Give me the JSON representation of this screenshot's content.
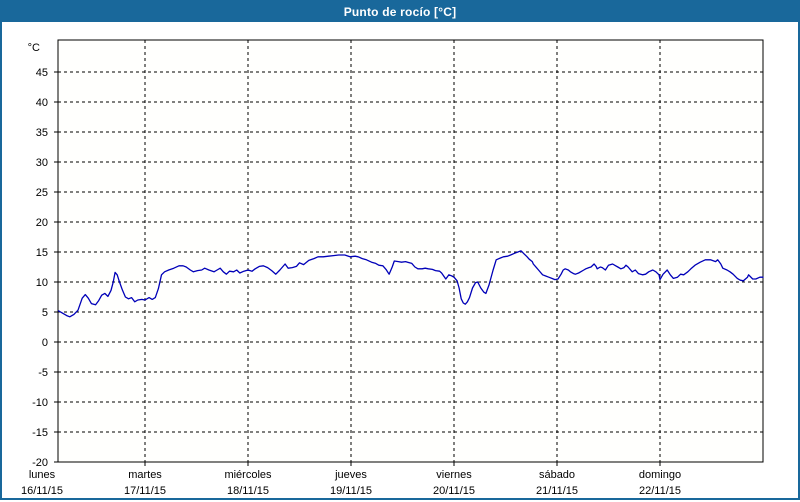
{
  "window": {
    "title": "Punto de rocío [°C]",
    "title_bar_color": "#19689b",
    "border_color": "#19689b",
    "background_color": "#ffffff"
  },
  "chart_data": {
    "type": "line",
    "title": "Punto de rocío [°C]",
    "ylabel": "°C",
    "xlabel": "",
    "grid": "dashed",
    "legend_position": "none",
    "colors": {
      "line": "#0000b8",
      "grid": "#000000",
      "axis": "#000000",
      "plot_bg": "#fffffd",
      "text": "#000000"
    },
    "y_axis": {
      "min": -20,
      "max": 50,
      "tick_step": 5,
      "tick_labels": [
        "45",
        "40",
        "35",
        "30",
        "25",
        "20",
        "15",
        "10",
        "5",
        "0",
        "-5",
        "-10",
        "-15",
        "-20"
      ],
      "tick_values": [
        45,
        40,
        35,
        30,
        25,
        20,
        15,
        10,
        5,
        0,
        -5,
        -10,
        -15,
        -20
      ],
      "unit_label": "°C"
    },
    "x_axis": {
      "days": [
        {
          "name": "lunes",
          "date": "16/11/15"
        },
        {
          "name": "martes",
          "date": "17/11/15"
        },
        {
          "name": "miércoles",
          "date": "18/11/15"
        },
        {
          "name": "jueves",
          "date": "19/11/15"
        },
        {
          "name": "viernes",
          "date": "20/11/15"
        },
        {
          "name": "sábado",
          "date": "21/11/15"
        },
        {
          "name": "domingo",
          "date": "22/11/15"
        }
      ],
      "range_days": [
        0.16,
        7.0
      ],
      "day_gridlines_at": [
        1,
        2,
        3,
        4,
        5,
        6
      ]
    },
    "series": [
      {
        "name": "Punto de rocío",
        "units": "°C",
        "x_units": "days since 16/11/15 00:00",
        "points": [
          [
            0.16,
            5.2
          ],
          [
            0.2,
            4.8
          ],
          [
            0.24,
            4.4
          ],
          [
            0.27,
            4.2
          ],
          [
            0.31,
            4.6
          ],
          [
            0.35,
            5.3
          ],
          [
            0.39,
            7.3
          ],
          [
            0.42,
            7.9
          ],
          [
            0.45,
            7.3
          ],
          [
            0.48,
            6.4
          ],
          [
            0.52,
            6.2
          ],
          [
            0.55,
            6.9
          ],
          [
            0.58,
            7.8
          ],
          [
            0.61,
            8.1
          ],
          [
            0.64,
            7.6
          ],
          [
            0.67,
            8.6
          ],
          [
            0.69,
            9.9
          ],
          [
            0.71,
            11.6
          ],
          [
            0.73,
            11.2
          ],
          [
            0.75,
            10.1
          ],
          [
            0.78,
            8.7
          ],
          [
            0.81,
            7.5
          ],
          [
            0.84,
            7.2
          ],
          [
            0.87,
            7.4
          ],
          [
            0.9,
            6.7
          ],
          [
            0.93,
            7.0
          ],
          [
            0.97,
            7.1
          ],
          [
            1.0,
            7.0
          ],
          [
            1.04,
            7.4
          ],
          [
            1.07,
            7.1
          ],
          [
            1.1,
            7.4
          ],
          [
            1.13,
            8.9
          ],
          [
            1.16,
            11.2
          ],
          [
            1.19,
            11.7
          ],
          [
            1.23,
            12.0
          ],
          [
            1.28,
            12.3
          ],
          [
            1.33,
            12.7
          ],
          [
            1.37,
            12.7
          ],
          [
            1.4,
            12.5
          ],
          [
            1.44,
            12.0
          ],
          [
            1.47,
            11.7
          ],
          [
            1.51,
            11.9
          ],
          [
            1.55,
            12.0
          ],
          [
            1.58,
            12.3
          ],
          [
            1.62,
            12.0
          ],
          [
            1.67,
            11.7
          ],
          [
            1.7,
            12.0
          ],
          [
            1.73,
            12.3
          ],
          [
            1.76,
            11.7
          ],
          [
            1.79,
            11.3
          ],
          [
            1.82,
            11.8
          ],
          [
            1.86,
            11.7
          ],
          [
            1.89,
            12.0
          ],
          [
            1.92,
            11.5
          ],
          [
            1.96,
            11.8
          ],
          [
            2.0,
            12.0
          ],
          [
            2.04,
            11.8
          ],
          [
            2.07,
            12.2
          ],
          [
            2.11,
            12.6
          ],
          [
            2.15,
            12.7
          ],
          [
            2.19,
            12.4
          ],
          [
            2.23,
            11.9
          ],
          [
            2.27,
            11.3
          ],
          [
            2.31,
            12.0
          ],
          [
            2.36,
            13.0
          ],
          [
            2.39,
            12.3
          ],
          [
            2.43,
            12.4
          ],
          [
            2.47,
            12.6
          ],
          [
            2.5,
            13.2
          ],
          [
            2.54,
            12.9
          ],
          [
            2.59,
            13.6
          ],
          [
            2.64,
            13.9
          ],
          [
            2.68,
            14.2
          ],
          [
            2.73,
            14.2
          ],
          [
            2.78,
            14.3
          ],
          [
            2.83,
            14.4
          ],
          [
            2.88,
            14.5
          ],
          [
            2.94,
            14.5
          ],
          [
            2.99,
            14.2
          ],
          [
            3.04,
            14.3
          ],
          [
            3.07,
            14.2
          ],
          [
            3.11,
            13.9
          ],
          [
            3.15,
            13.7
          ],
          [
            3.2,
            13.3
          ],
          [
            3.24,
            13.1
          ],
          [
            3.27,
            12.8
          ],
          [
            3.31,
            12.7
          ],
          [
            3.34,
            12.1
          ],
          [
            3.37,
            11.3
          ],
          [
            3.4,
            12.5
          ],
          [
            3.42,
            13.5
          ],
          [
            3.46,
            13.4
          ],
          [
            3.49,
            13.3
          ],
          [
            3.53,
            13.4
          ],
          [
            3.55,
            13.3
          ],
          [
            3.59,
            13.1
          ],
          [
            3.62,
            12.5
          ],
          [
            3.65,
            12.2
          ],
          [
            3.69,
            12.2
          ],
          [
            3.72,
            12.3
          ],
          [
            3.75,
            12.2
          ],
          [
            3.79,
            12.1
          ],
          [
            3.82,
            11.9
          ],
          [
            3.86,
            11.8
          ],
          [
            3.88,
            11.5
          ],
          [
            3.92,
            10.5
          ],
          [
            3.95,
            11.2
          ],
          [
            3.98,
            11.0
          ],
          [
            4.0,
            10.8
          ],
          [
            4.03,
            10.2
          ],
          [
            4.05,
            9.0
          ],
          [
            4.07,
            7.2
          ],
          [
            4.09,
            6.5
          ],
          [
            4.11,
            6.3
          ],
          [
            4.13,
            6.7
          ],
          [
            4.15,
            7.4
          ],
          [
            4.18,
            9.0
          ],
          [
            4.21,
            9.9
          ],
          [
            4.23,
            10.0
          ],
          [
            4.26,
            9.0
          ],
          [
            4.29,
            8.3
          ],
          [
            4.31,
            8.1
          ],
          [
            4.34,
            9.5
          ],
          [
            4.38,
            12.0
          ],
          [
            4.41,
            13.7
          ],
          [
            4.45,
            14.0
          ],
          [
            4.48,
            14.2
          ],
          [
            4.52,
            14.3
          ],
          [
            4.55,
            14.5
          ],
          [
            4.59,
            14.8
          ],
          [
            4.62,
            15.0
          ],
          [
            4.65,
            15.2
          ],
          [
            4.68,
            14.7
          ],
          [
            4.71,
            14.2
          ],
          [
            4.73,
            13.8
          ],
          [
            4.76,
            13.4
          ],
          [
            4.77,
            13.0
          ],
          [
            4.8,
            12.4
          ],
          [
            4.82,
            12.0
          ],
          [
            4.86,
            11.2
          ],
          [
            4.89,
            11.0
          ],
          [
            4.92,
            10.8
          ],
          [
            4.95,
            10.6
          ],
          [
            4.98,
            10.4
          ],
          [
            5.01,
            10.5
          ],
          [
            5.04,
            11.3
          ],
          [
            5.06,
            12.0
          ],
          [
            5.08,
            12.2
          ],
          [
            5.11,
            12.0
          ],
          [
            5.13,
            11.7
          ],
          [
            5.16,
            11.4
          ],
          [
            5.18,
            11.3
          ],
          [
            5.21,
            11.5
          ],
          [
            5.23,
            11.7
          ],
          [
            5.26,
            12.0
          ],
          [
            5.28,
            12.2
          ],
          [
            5.31,
            12.4
          ],
          [
            5.33,
            12.5
          ],
          [
            5.36,
            13.0
          ],
          [
            5.38,
            12.6
          ],
          [
            5.39,
            12.2
          ],
          [
            5.42,
            12.5
          ],
          [
            5.44,
            12.4
          ],
          [
            5.47,
            12.0
          ],
          [
            5.5,
            12.8
          ],
          [
            5.54,
            13.0
          ],
          [
            5.57,
            12.7
          ],
          [
            5.59,
            12.5
          ],
          [
            5.62,
            12.2
          ],
          [
            5.65,
            12.4
          ],
          [
            5.67,
            12.8
          ],
          [
            5.69,
            12.5
          ],
          [
            5.73,
            11.7
          ],
          [
            5.76,
            12.0
          ],
          [
            5.79,
            11.4
          ],
          [
            5.83,
            11.2
          ],
          [
            5.86,
            11.3
          ],
          [
            5.89,
            11.7
          ],
          [
            5.93,
            12.0
          ],
          [
            5.96,
            11.7
          ],
          [
            5.99,
            11.2
          ],
          [
            6.0,
            10.4
          ],
          [
            6.03,
            11.3
          ],
          [
            6.07,
            12.0
          ],
          [
            6.1,
            11.2
          ],
          [
            6.13,
            10.6
          ],
          [
            6.17,
            10.8
          ],
          [
            6.2,
            11.3
          ],
          [
            6.23,
            11.2
          ],
          [
            6.27,
            11.7
          ],
          [
            6.3,
            12.2
          ],
          [
            6.34,
            12.8
          ],
          [
            6.39,
            13.3
          ],
          [
            6.44,
            13.7
          ],
          [
            6.49,
            13.7
          ],
          [
            6.54,
            13.4
          ],
          [
            6.56,
            13.7
          ],
          [
            6.59,
            13.0
          ],
          [
            6.61,
            12.3
          ],
          [
            6.65,
            12.0
          ],
          [
            6.68,
            11.7
          ],
          [
            6.71,
            11.3
          ],
          [
            6.75,
            10.6
          ],
          [
            6.78,
            10.3
          ],
          [
            6.81,
            10.2
          ],
          [
            6.85,
            10.8
          ],
          [
            6.86,
            11.2
          ],
          [
            6.9,
            10.5
          ],
          [
            6.93,
            10.5
          ],
          [
            6.97,
            10.8
          ],
          [
            7.0,
            10.8
          ]
        ]
      }
    ]
  }
}
